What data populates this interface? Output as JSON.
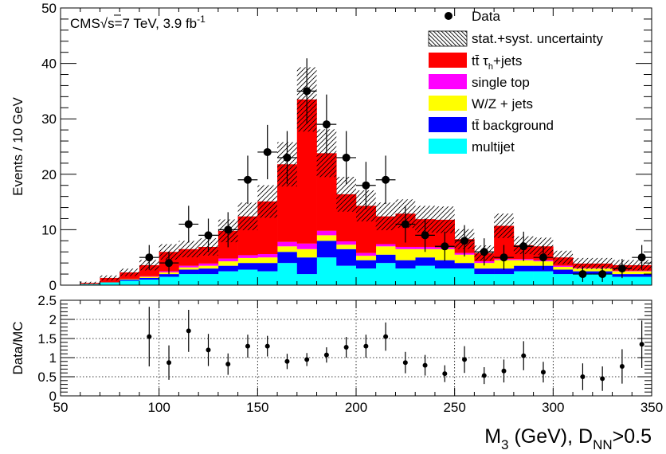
{
  "chart_data": [
    {
      "type": "bar",
      "stacked": true,
      "xlabel_main": "M",
      "xlabel_main_sub": "3",
      "xlabel_unit": " (GeV), D",
      "xlabel_sub": "NN",
      "xlabel_cut": ">0.5",
      "ylabel": "Events / 10 GeV",
      "xlim": [
        50,
        350
      ],
      "ylim": [
        0,
        50
      ],
      "xticks": [
        "50",
        "100",
        "150",
        "200",
        "250",
        "300",
        "350"
      ],
      "yticks": [
        "0",
        "10",
        "20",
        "30",
        "40",
        "50"
      ],
      "annotation_cms": "CMS",
      "annotation_sqrt": "√",
      "annotation_energy": "s=7 TeV, 3.9 fb",
      "annotation_sup": "-1",
      "bin_edges": [
        50,
        60,
        70,
        80,
        90,
        100,
        110,
        120,
        130,
        140,
        150,
        160,
        170,
        180,
        190,
        200,
        210,
        220,
        230,
        240,
        250,
        260,
        270,
        280,
        290,
        300,
        310,
        320,
        330,
        340,
        350
      ],
      "series": [
        {
          "name": "multijet",
          "color": "#00ffff",
          "values": [
            0,
            0.2,
            0.5,
            0.8,
            1.0,
            1.5,
            2.0,
            2.0,
            2.5,
            2.8,
            2.5,
            4.0,
            2.0,
            5.0,
            3.5,
            3.0,
            4.0,
            3.0,
            3.5,
            3.0,
            3.0,
            2.0,
            2.0,
            2.5,
            2.5,
            2.0,
            2.0,
            2.0,
            1.5,
            1.5
          ]
        },
        {
          "name": "tt̄ background",
          "color": "#0000ff",
          "values": [
            0,
            0,
            0,
            0.2,
            0.3,
            0.5,
            0.8,
            1.0,
            1.0,
            1.2,
            1.5,
            2.0,
            3.0,
            3.0,
            3.0,
            1.5,
            1.5,
            1.5,
            1.5,
            1.5,
            1.0,
            1.0,
            1.0,
            1.0,
            1.0,
            0.8,
            0.5,
            0.5,
            0.5,
            0.5
          ]
        },
        {
          "name": "W/Z + jets",
          "color": "#ffff00",
          "values": [
            0,
            0,
            0,
            0.1,
            0.2,
            0.3,
            0.4,
            0.5,
            0.8,
            0.9,
            1.0,
            1.0,
            1.5,
            1.0,
            0.8,
            0.8,
            1.5,
            2.0,
            1.5,
            2.0,
            1.5,
            1.0,
            1.5,
            1.0,
            0.8,
            0.5,
            0.5,
            0.5,
            0.5,
            0.5
          ]
        },
        {
          "name": "single top",
          "color": "#ff00ff",
          "values": [
            0,
            0,
            0,
            0,
            0.1,
            0.2,
            0.3,
            0.4,
            0.5,
            0.5,
            0.6,
            0.8,
            1.0,
            0.8,
            0.6,
            0.5,
            0.4,
            0.4,
            0.4,
            0.3,
            0.3,
            0.3,
            0.2,
            0.2,
            0.2,
            0.2,
            0.1,
            0.1,
            0.1,
            0.1
          ]
        },
        {
          "name": "tt̄ τ_h+jets",
          "color": "#ff0000",
          "values": [
            0,
            0.2,
            0.8,
            1.2,
            2.0,
            3.5,
            3.0,
            3.0,
            5.0,
            7.0,
            9.5,
            14.0,
            26.0,
            14.0,
            8.5,
            8.5,
            5.0,
            6.0,
            5.0,
            5.0,
            2.5,
            1.5,
            6.0,
            2.5,
            2.5,
            1.5,
            0.8,
            0.8,
            1.0,
            1.0
          ]
        }
      ],
      "data_points": [
        {
          "x": 95,
          "y": 5
        },
        {
          "x": 105,
          "y": 4
        },
        {
          "x": 115,
          "y": 11
        },
        {
          "x": 125,
          "y": 9
        },
        {
          "x": 135,
          "y": 10
        },
        {
          "x": 145,
          "y": 19
        },
        {
          "x": 155,
          "y": 24
        },
        {
          "x": 165,
          "y": 23
        },
        {
          "x": 175,
          "y": 35
        },
        {
          "x": 185,
          "y": 29
        },
        {
          "x": 195,
          "y": 23
        },
        {
          "x": 205,
          "y": 18
        },
        {
          "x": 215,
          "y": 19
        },
        {
          "x": 225,
          "y": 11
        },
        {
          "x": 235,
          "y": 9
        },
        {
          "x": 245,
          "y": 7
        },
        {
          "x": 255,
          "y": 8
        },
        {
          "x": 265,
          "y": 6
        },
        {
          "x": 275,
          "y": 5
        },
        {
          "x": 285,
          "y": 7
        },
        {
          "x": 295,
          "y": 5
        },
        {
          "x": 315,
          "y": 2
        },
        {
          "x": 325,
          "y": 2
        },
        {
          "x": 335,
          "y": 3
        },
        {
          "x": 345,
          "y": 5
        }
      ],
      "legend": {
        "placement": "top-right",
        "data": "Data",
        "uncertainty": "stat.+syst. uncertainty",
        "ttau": "tt̄ τ",
        "ttau_sub": "h",
        "ttau_suffix": "+jets",
        "singletop": "single top",
        "wz": "W/Z + jets",
        "ttbkg": "tt̄ background",
        "multijet": "multijet"
      },
      "uncertainty_relative": 0.13
    },
    {
      "type": "scatter",
      "ylabel": "Data/MC",
      "xlim": [
        50,
        350
      ],
      "ylim": [
        0,
        2.5
      ],
      "xticks": [
        "50",
        "100",
        "150",
        "200",
        "250",
        "300",
        "350"
      ],
      "yticks": [
        "0",
        "0.5",
        "1",
        "1.5",
        "2",
        "2.5"
      ],
      "grid": true,
      "points": [
        {
          "x": 95,
          "y": 1.55,
          "err": 0.78
        },
        {
          "x": 105,
          "y": 0.87,
          "err": 0.45
        },
        {
          "x": 115,
          "y": 1.7,
          "err": 0.55
        },
        {
          "x": 125,
          "y": 1.2,
          "err": 0.42
        },
        {
          "x": 135,
          "y": 0.83,
          "err": 0.28
        },
        {
          "x": 145,
          "y": 1.3,
          "err": 0.3
        },
        {
          "x": 155,
          "y": 1.3,
          "err": 0.27
        },
        {
          "x": 165,
          "y": 0.9,
          "err": 0.2
        },
        {
          "x": 175,
          "y": 0.95,
          "err": 0.17
        },
        {
          "x": 185,
          "y": 1.07,
          "err": 0.2
        },
        {
          "x": 195,
          "y": 1.27,
          "err": 0.27
        },
        {
          "x": 205,
          "y": 1.3,
          "err": 0.3
        },
        {
          "x": 215,
          "y": 1.55,
          "err": 0.37
        },
        {
          "x": 225,
          "y": 0.87,
          "err": 0.28
        },
        {
          "x": 235,
          "y": 0.8,
          "err": 0.27
        },
        {
          "x": 245,
          "y": 0.58,
          "err": 0.22
        },
        {
          "x": 255,
          "y": 0.95,
          "err": 0.35
        },
        {
          "x": 265,
          "y": 0.53,
          "err": 0.22
        },
        {
          "x": 275,
          "y": 0.65,
          "err": 0.3
        },
        {
          "x": 285,
          "y": 1.05,
          "err": 0.38
        },
        {
          "x": 295,
          "y": 0.62,
          "err": 0.27
        },
        {
          "x": 315,
          "y": 0.5,
          "err": 0.35
        },
        {
          "x": 325,
          "y": 0.45,
          "err": 0.32
        },
        {
          "x": 335,
          "y": 0.77,
          "err": 0.45
        },
        {
          "x": 345,
          "y": 1.35,
          "err": 0.62
        }
      ]
    }
  ]
}
